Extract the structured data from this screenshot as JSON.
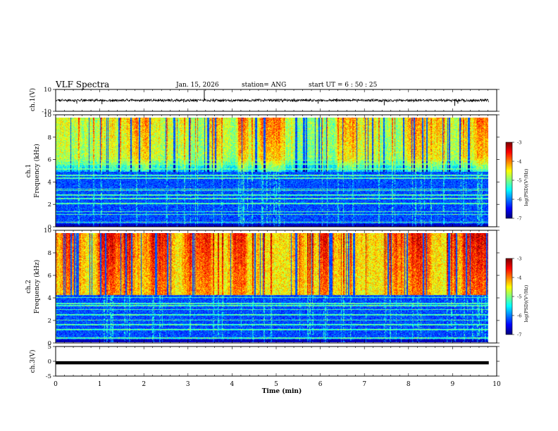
{
  "header": {
    "title": "VLF Spectra",
    "date": "Jan. 15, 2026",
    "station": "station= ANG",
    "start": "start  UT  =   6  : 50 : 25"
  },
  "chart_data": [
    {
      "type": "line",
      "name": "ch1-waveform",
      "ylabel": "ch.1(V)",
      "ylim": [
        -10,
        10
      ],
      "y_ticks": [
        "10",
        "-10"
      ],
      "x_range": [
        0,
        10
      ],
      "baseline": 0,
      "amplitude": 1.5,
      "spikes": [
        {
          "t": 0.48,
          "v": -3.0
        },
        {
          "t": 1.05,
          "v": -3.5
        },
        {
          "t": 2.9,
          "v": -1.8
        },
        {
          "t": 3.37,
          "v": 9.5
        },
        {
          "t": 5.95,
          "v": -3.0
        },
        {
          "t": 7.45,
          "v": -4.5
        },
        {
          "t": 9.05,
          "v": -5.0
        },
        {
          "t": 9.12,
          "v": -3.0
        }
      ]
    },
    {
      "type": "heatmap",
      "name": "ch1-spectrogram",
      "ylabel": "ch.1 Frequency (kHz)",
      "ylim": [
        0,
        10
      ],
      "y_ticks": [
        "0",
        "2",
        "4",
        "6",
        "8",
        "10"
      ],
      "x_range": [
        0,
        9.82
      ],
      "background_upper_kHz": 5.0,
      "emission_top_kHz": 10.0,
      "lines_kHz": [
        0.4,
        1.1,
        1.35,
        2.1,
        2.55,
        2.9,
        3.3,
        3.45,
        4.45,
        4.7,
        5.3,
        5.75,
        6.1
      ],
      "colorbar": {
        "label": "log(PSD)(V²/Hz)",
        "range": [
          -7,
          -3
        ],
        "ticks": [
          "-3",
          "-4",
          "-5",
          "-6",
          "-7"
        ]
      }
    },
    {
      "type": "heatmap",
      "name": "ch2-spectrogram",
      "ylabel": "ch.2 Frequency (kHz)",
      "ylim": [
        0,
        10
      ],
      "y_ticks": [
        "0",
        "2",
        "4",
        "6",
        "8",
        "10"
      ],
      "x_range": [
        0,
        9.82
      ],
      "background_upper_kHz": 4.3,
      "emission_top_kHz": 10.0,
      "lines_kHz": [
        0.35,
        1.15,
        1.6,
        2.0,
        2.5,
        3.0,
        3.35,
        3.55,
        4.1
      ],
      "colorbar": {
        "label": "log(PSD)(V²/Hz)",
        "range": [
          -7,
          -3
        ],
        "ticks": [
          "-3",
          "-4",
          "-5",
          "-6",
          "-7"
        ]
      }
    },
    {
      "type": "line",
      "name": "ch3-waveform",
      "ylabel": "ch.3(V)",
      "ylim": [
        -5,
        5
      ],
      "y_ticks": [
        "5",
        "0",
        "-5"
      ],
      "x_range": [
        0,
        9.82
      ],
      "constant_value": -0.5
    }
  ],
  "xaxis": {
    "label": "Time  (min)",
    "range": [
      0,
      10
    ],
    "ticks": [
      "0",
      "1",
      "2",
      "3",
      "4",
      "5",
      "6",
      "7",
      "8",
      "9",
      "10"
    ]
  },
  "colors": {
    "jet": [
      "#00007f",
      "#0000ff",
      "#007fff",
      "#00ffff",
      "#7fff7f",
      "#ffff00",
      "#ff7f00",
      "#ff0000",
      "#7f0000"
    ]
  }
}
